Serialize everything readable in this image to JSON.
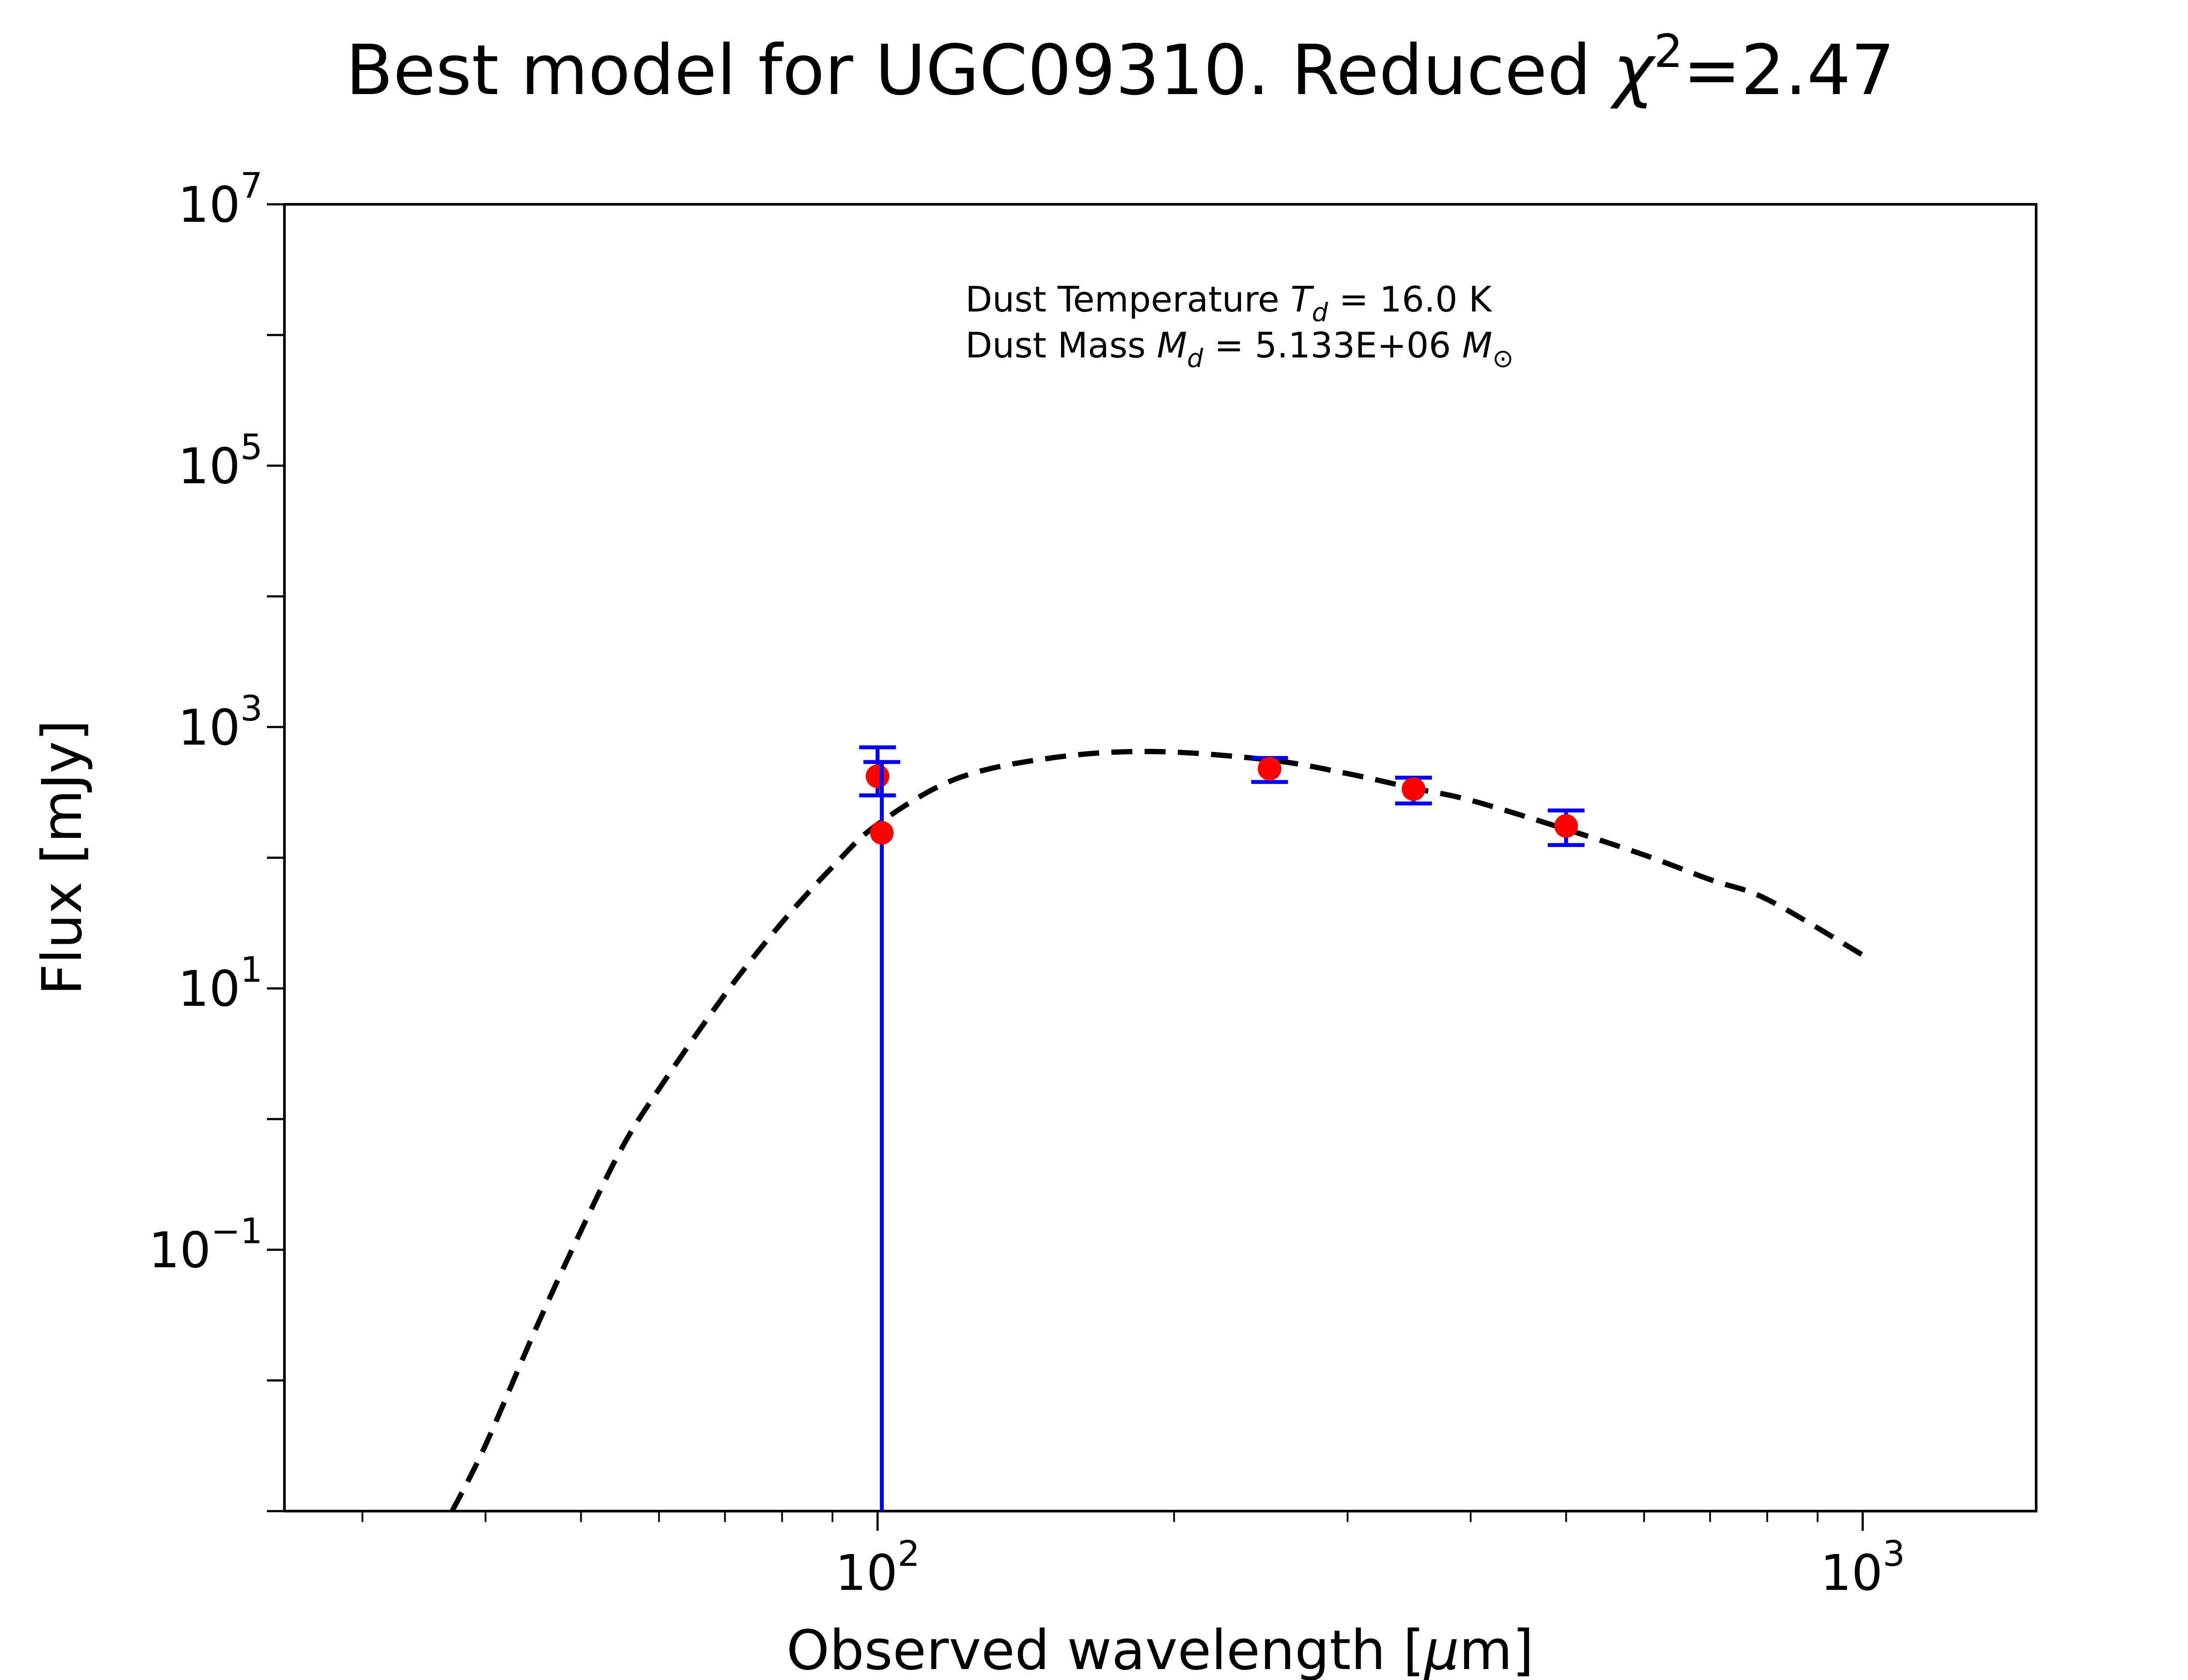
{
  "chart_data": {
    "type": "scatter",
    "title": {
      "prefix": "Best model for UGC09310. Reduced ",
      "chi_symbol": "χ",
      "chi_exponent": "2",
      "suffix": "=2.47"
    },
    "xlabel": {
      "prefix": "Observed wavelength [",
      "mu": "μ",
      "suffix": "m]"
    },
    "ylabel": "Flux [mJy]",
    "x_scale": "log",
    "y_scale": "log",
    "xlim": [
      25,
      1500
    ],
    "ylim": [
      0.001,
      10000000
    ],
    "x_ticks": [
      {
        "value": 100,
        "base": "10",
        "exponent": "2"
      },
      {
        "value": 1000,
        "base": "10",
        "exponent": "3"
      }
    ],
    "y_ticks": [
      {
        "value": 0.1,
        "base": "10",
        "exponent": "−1"
      },
      {
        "value": 10,
        "base": "10",
        "exponent": "1"
      },
      {
        "value": 1000,
        "base": "10",
        "exponent": "3"
      },
      {
        "value": 100000,
        "base": "10",
        "exponent": "5"
      },
      {
        "value": 10000000,
        "base": "10",
        "exponent": "7"
      }
    ],
    "grid": false,
    "annotations": {
      "line1": {
        "prefix": "Dust Temperature ",
        "symbol": "T",
        "subscript": "d",
        "suffix": " = 16.0 K"
      },
      "line2": {
        "prefix": "Dust Mass ",
        "symbol": "M",
        "subscript": "d",
        "middle": " = 5.133E+06 ",
        "unit_symbol": "M",
        "unit_subscript": "⊙"
      }
    },
    "observed": {
      "color": "#ff0000",
      "error_color": "#0000ff",
      "points": [
        {
          "x": 100,
          "y": 420,
          "yerr_low": 300,
          "yerr_high": 700
        },
        {
          "x": 101,
          "y": 155,
          "yerr_low": 0.001,
          "yerr_high": 540
        },
        {
          "x": 250,
          "y": 480,
          "yerr_low": 380,
          "yerr_high": 580
        },
        {
          "x": 350,
          "y": 335,
          "yerr_low": 260,
          "yerr_high": 410
        },
        {
          "x": 500,
          "y": 175,
          "yerr_low": 125,
          "yerr_high": 230
        }
      ]
    },
    "model": {
      "color": "#000000",
      "style": "dashed",
      "x": [
        37,
        40,
        45,
        50,
        55,
        60,
        70,
        80,
        90,
        100,
        120,
        150,
        190,
        250,
        300,
        350,
        400,
        500,
        600,
        700,
        800,
        1000
      ],
      "y": [
        0.001,
        0.0032,
        0.025,
        0.14,
        0.6,
        1.7,
        9,
        32,
        85,
        180,
        400,
        580,
        650,
        560,
        440,
        340,
        275,
        165,
        105,
        68,
        48,
        18
      ]
    }
  }
}
